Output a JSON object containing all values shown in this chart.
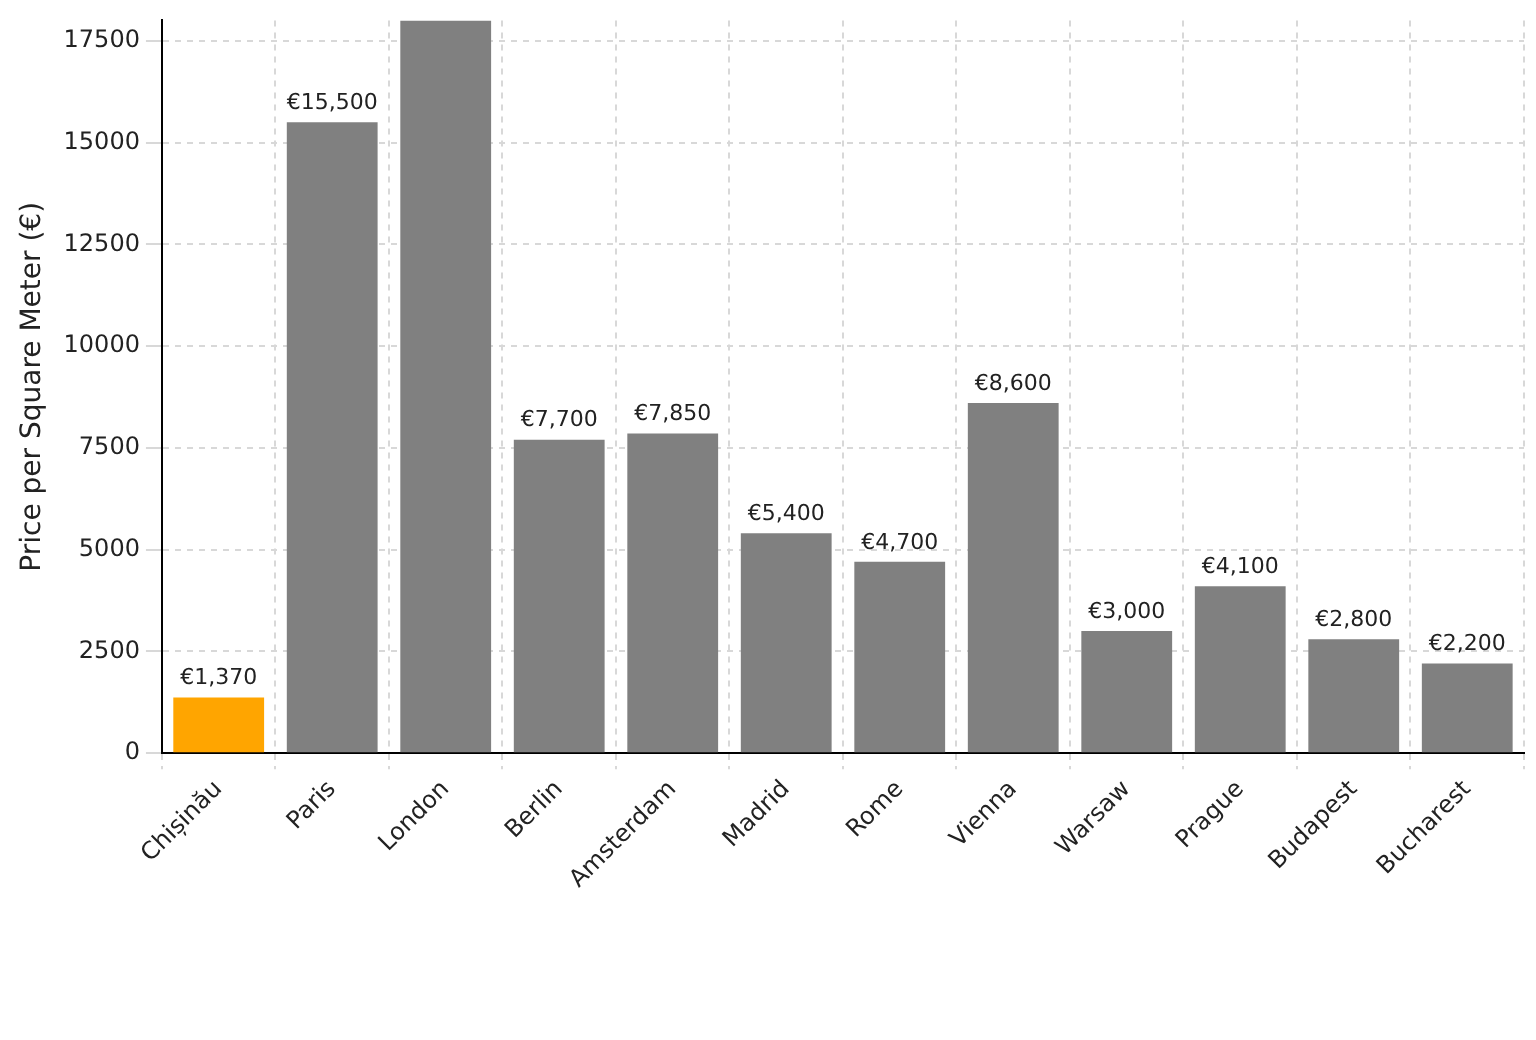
{
  "chart_data": {
    "type": "bar",
    "ylabel": "Price per Square Meter (€)",
    "categories": [
      "Chișinău",
      "Paris",
      "London",
      "Berlin",
      "Amsterdam",
      "Madrid",
      "Rome",
      "Vienna",
      "Warsaw",
      "Prague",
      "Budapest",
      "Bucharest"
    ],
    "values": [
      1370,
      15500,
      18000,
      7700,
      7850,
      5400,
      4700,
      8600,
      3000,
      4100,
      2800,
      2200
    ],
    "colors": [
      "#ffa500",
      "#808080",
      "#808080",
      "#808080",
      "#808080",
      "#808080",
      "#808080",
      "#808080",
      "#808080",
      "#808080",
      "#808080",
      "#808080"
    ],
    "value_labels": [
      "€1,370",
      "€15,500",
      null,
      "€7,700",
      "€7,850",
      "€5,400",
      "€4,700",
      "€8,600",
      "€3,000",
      "€4,100",
      "€2,800",
      "€2,200"
    ],
    "ylim": [
      0,
      18000
    ],
    "yticks": [
      0,
      2500,
      5000,
      7500,
      10000,
      12500,
      15000,
      17500
    ],
    "grid": true
  }
}
